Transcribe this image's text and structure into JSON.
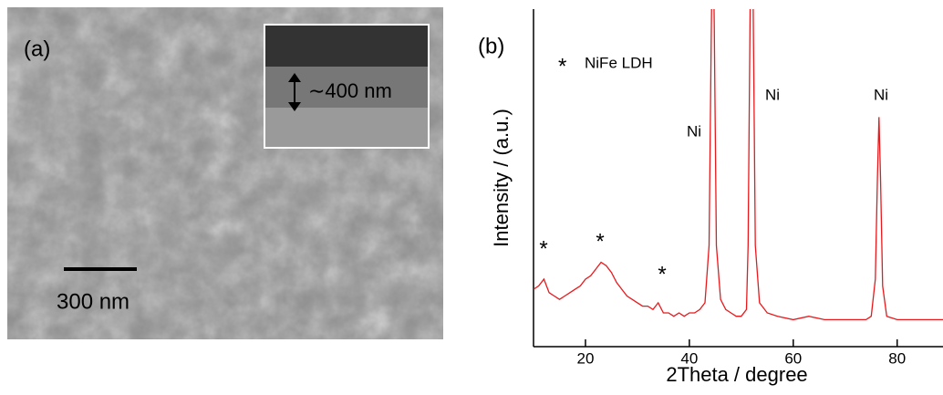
{
  "panel_a": {
    "label": "(a)",
    "scale_bar": "300 nm",
    "inset_label": "∼400 nm"
  },
  "chart_data": {
    "type": "line",
    "panel_label": "(b)",
    "x_label": "2Theta / degree",
    "y_label": "Intensity / (a.u.)",
    "xlim": [
      10,
      89
    ],
    "ylim": [
      0,
      100
    ],
    "xticks": [
      20,
      40,
      60,
      80
    ],
    "color": "#e8191c",
    "legend": {
      "marker": "*",
      "label": "NiFe LDH"
    },
    "annotations": [
      "*",
      "*",
      "*",
      "Ni",
      "Ni",
      "Ni"
    ],
    "x": [
      10,
      11,
      12,
      13,
      14,
      15,
      16,
      17,
      18,
      19,
      20,
      21,
      22,
      23,
      24,
      25,
      26,
      27,
      28,
      29,
      30,
      31,
      32,
      33,
      34,
      35,
      36,
      37,
      38,
      39,
      40,
      41,
      42,
      43,
      43.8,
      44.2,
      44.5,
      44.8,
      45.2,
      46,
      47,
      48,
      49,
      50,
      51,
      51.3,
      51.7,
      52,
      52.3,
      52.7,
      53.5,
      55,
      57,
      60,
      63,
      66,
      69,
      72,
      74,
      75,
      75.8,
      76.2,
      76.5,
      76.8,
      77.2,
      78,
      80,
      83,
      86,
      89
    ],
    "values": [
      17,
      18,
      20,
      16,
      15,
      14,
      15,
      16,
      17,
      18,
      20,
      21,
      23,
      25,
      24,
      22,
      19,
      17,
      15,
      14,
      13,
      12,
      12,
      11,
      13,
      10,
      10,
      9,
      10,
      9,
      10,
      10,
      11,
      13,
      30,
      90,
      130,
      95,
      30,
      14,
      11,
      10,
      9,
      9,
      11,
      30,
      100,
      130,
      100,
      30,
      13,
      10,
      9,
      8,
      9,
      8,
      8,
      8,
      8,
      9,
      20,
      50,
      68,
      50,
      18,
      9,
      8,
      8,
      8,
      8
    ]
  }
}
